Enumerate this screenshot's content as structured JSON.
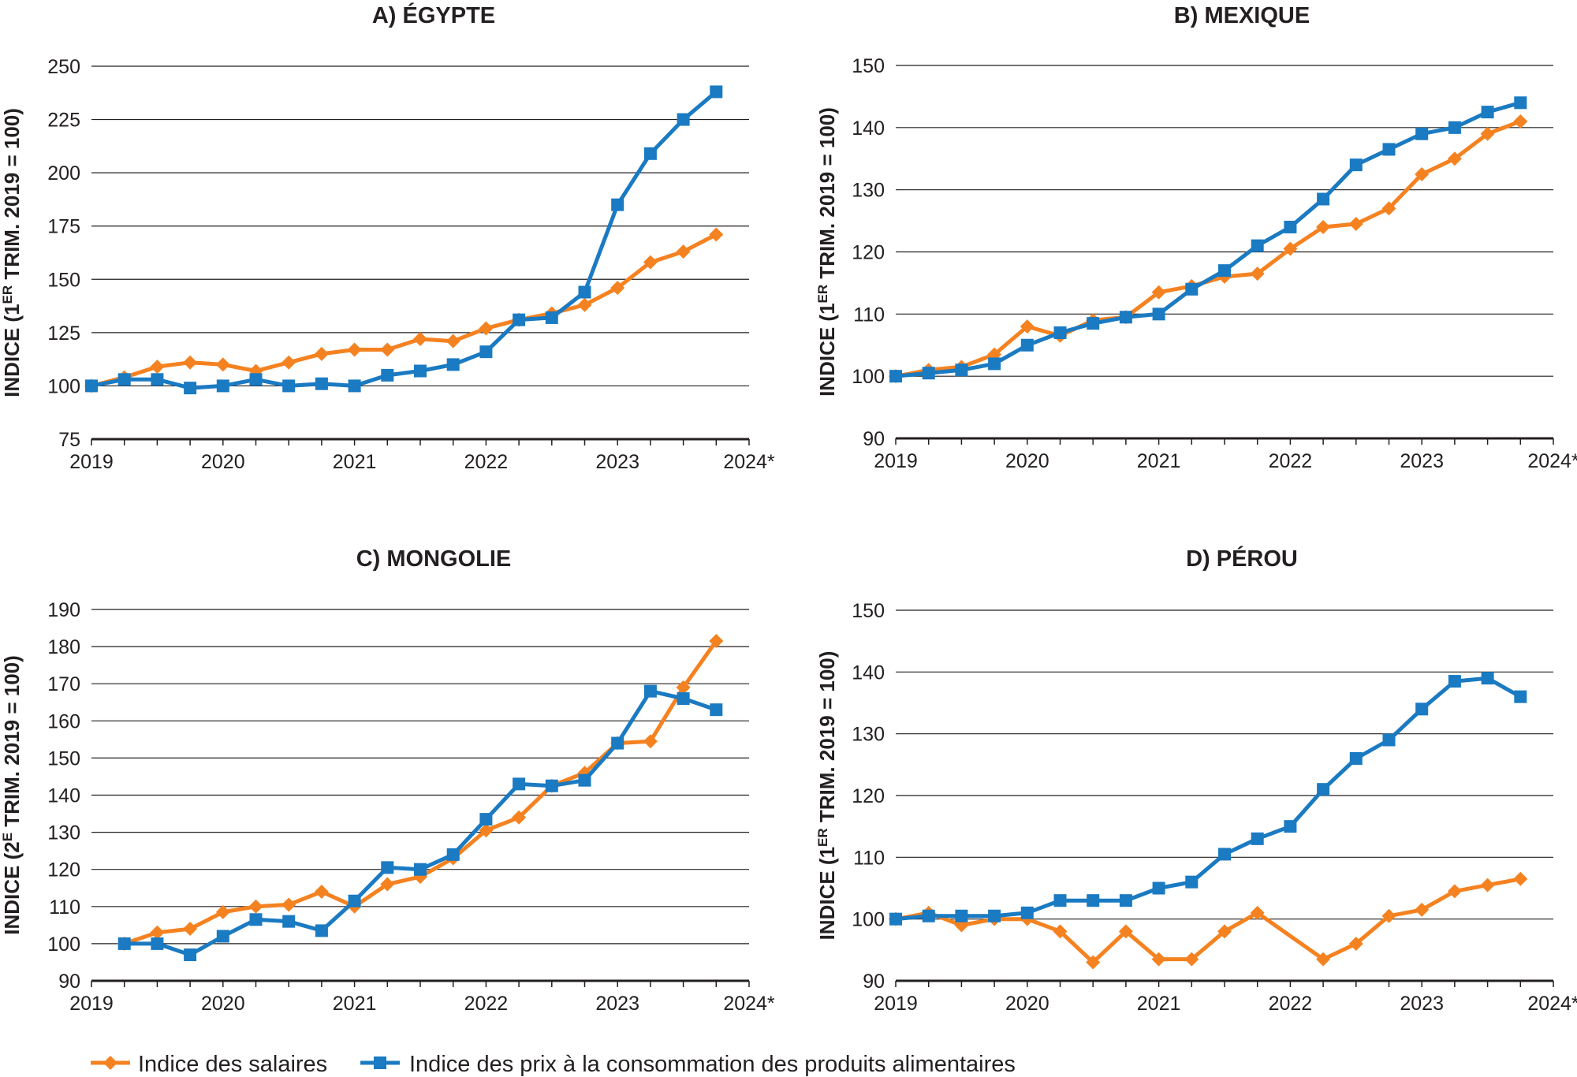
{
  "colors": {
    "wage": "#f58220",
    "cpi": "#1a7ac2",
    "grid": "#231f20"
  },
  "legend": {
    "wage_label": "Indice des salaires",
    "cpi_label": "Indice des prix à la consommation des produits alimentaires"
  },
  "chart_data": [
    {
      "type": "line",
      "title": "A) ÉGYPTE",
      "ylabel": "INDICE (1ER TRIM. 2019 = 100)",
      "xlabel": "",
      "x_ticks": [
        "2019",
        "2020",
        "2021",
        "2022",
        "2023",
        "2024*"
      ],
      "xlim": [
        2019,
        2024
      ],
      "ylim": [
        75,
        250
      ],
      "y_ticks": [
        75,
        100,
        125,
        150,
        175,
        200,
        225,
        250
      ],
      "grid": true,
      "series": [
        {
          "name": "Indice des salaires",
          "color": "#f58220",
          "marker": "diamond",
          "x": [
            2019.0,
            2019.25,
            2019.5,
            2019.75,
            2020.0,
            2020.25,
            2020.5,
            2020.75,
            2021.0,
            2021.25,
            2021.5,
            2021.75,
            2022.0,
            2022.25,
            2022.5,
            2022.75,
            2023.0,
            2023.25,
            2023.5,
            2023.75
          ],
          "y": [
            100,
            104,
            109,
            111,
            110,
            107,
            111,
            115,
            117,
            117,
            122,
            121,
            127,
            131,
            134,
            138,
            146,
            158,
            163,
            171
          ]
        },
        {
          "name": "Indice des prix à la consommation des produits alimentaires",
          "color": "#1a7ac2",
          "marker": "square",
          "x": [
            2019.0,
            2019.25,
            2019.5,
            2019.75,
            2020.0,
            2020.25,
            2020.5,
            2020.75,
            2021.0,
            2021.25,
            2021.5,
            2021.75,
            2022.0,
            2022.25,
            2022.5,
            2022.75,
            2023.0,
            2023.25,
            2023.5,
            2023.75
          ],
          "y": [
            100,
            103,
            103,
            99,
            100,
            103,
            100,
            101,
            100,
            105,
            107,
            110,
            116,
            131,
            132,
            144,
            185,
            209,
            225,
            238
          ]
        }
      ]
    },
    {
      "type": "line",
      "title": "B) MEXIQUE",
      "ylabel": "INDICE (1ER TRIM. 2019 = 100)",
      "xlabel": "",
      "x_ticks": [
        "2019",
        "2020",
        "2021",
        "2022",
        "2023",
        "2024*"
      ],
      "xlim": [
        2019,
        2024
      ],
      "ylim": [
        90,
        150
      ],
      "y_ticks": [
        90,
        100,
        110,
        120,
        130,
        140,
        150
      ],
      "grid": true,
      "series": [
        {
          "name": "Indice des salaires",
          "color": "#f58220",
          "marker": "diamond",
          "x": [
            2019.0,
            2019.25,
            2019.5,
            2019.75,
            2020.0,
            2020.25,
            2020.5,
            2020.75,
            2021.0,
            2021.25,
            2021.5,
            2021.75,
            2022.0,
            2022.25,
            2022.5,
            2022.75,
            2023.0,
            2023.25,
            2023.5,
            2023.75
          ],
          "y": [
            100,
            101,
            101.5,
            103.5,
            108,
            106.5,
            109,
            109.5,
            113.5,
            114.5,
            116,
            116.5,
            120.5,
            124,
            124.5,
            127,
            132.5,
            135,
            139,
            141
          ]
        },
        {
          "name": "Indice des prix à la consommation des produits alimentaires",
          "color": "#1a7ac2",
          "marker": "square",
          "x": [
            2019.0,
            2019.25,
            2019.5,
            2019.75,
            2020.0,
            2020.25,
            2020.5,
            2020.75,
            2021.0,
            2021.25,
            2021.5,
            2021.75,
            2022.0,
            2022.25,
            2022.5,
            2022.75,
            2023.0,
            2023.25,
            2023.5,
            2023.75
          ],
          "y": [
            100,
            100.5,
            101,
            102,
            105,
            107,
            108.5,
            109.5,
            110,
            114,
            117,
            121,
            124,
            128.5,
            134,
            136.5,
            139,
            140,
            142.5,
            144
          ]
        }
      ]
    },
    {
      "type": "line",
      "title": "C) MONGOLIE",
      "ylabel": "INDICE (2E TRIM. 2019 = 100)",
      "xlabel": "",
      "x_ticks": [
        "2019",
        "2020",
        "2021",
        "2022",
        "2023",
        "2024*"
      ],
      "xlim": [
        2019,
        2024
      ],
      "ylim": [
        90,
        190
      ],
      "y_ticks": [
        90,
        100,
        110,
        120,
        130,
        140,
        150,
        160,
        170,
        180,
        190
      ],
      "grid": true,
      "series": [
        {
          "name": "Indice des salaires",
          "color": "#f58220",
          "marker": "diamond",
          "x": [
            2019.25,
            2019.5,
            2019.75,
            2020.0,
            2020.25,
            2020.5,
            2020.75,
            2021.0,
            2021.25,
            2021.5,
            2021.75,
            2022.0,
            2022.25,
            2022.5,
            2022.75,
            2023.0,
            2023.25,
            2023.5,
            2023.75
          ],
          "y": [
            100,
            103,
            104,
            108.5,
            110,
            110.5,
            114,
            110,
            116,
            118,
            123,
            130.5,
            134,
            142.5,
            146,
            154,
            154.5,
            169,
            181.5
          ]
        },
        {
          "name": "Indice des prix à la consommation des produits alimentaires",
          "color": "#1a7ac2",
          "marker": "square",
          "x": [
            2019.25,
            2019.5,
            2019.75,
            2020.0,
            2020.25,
            2020.5,
            2020.75,
            2021.0,
            2021.25,
            2021.5,
            2021.75,
            2022.0,
            2022.25,
            2022.5,
            2022.75,
            2023.0,
            2023.25,
            2023.5,
            2023.75
          ],
          "y": [
            100,
            100,
            97,
            102,
            106.5,
            106,
            103.5,
            111.5,
            120.5,
            120,
            124,
            133.5,
            143,
            142.5,
            144,
            154,
            168,
            166,
            163
          ]
        }
      ]
    },
    {
      "type": "line",
      "title": "D) PÉROU",
      "ylabel": "INDICE (1ER TRIM. 2019 = 100)",
      "xlabel": "",
      "x_ticks": [
        "2019",
        "2020",
        "2021",
        "2022",
        "2023",
        "2024*"
      ],
      "xlim": [
        2019,
        2024
      ],
      "ylim": [
        90,
        150
      ],
      "y_ticks": [
        90,
        100,
        110,
        120,
        130,
        140,
        150
      ],
      "grid": true,
      "series": [
        {
          "name": "Indice des salaires",
          "color": "#f58220",
          "marker": "diamond",
          "x": [
            2019.0,
            2019.25,
            2019.5,
            2019.75,
            2020.0,
            2020.25,
            2020.5,
            2020.75,
            2021.0,
            2021.25,
            2021.5,
            2021.75,
            2022.25,
            2022.5,
            2022.75,
            2023.0,
            2023.25,
            2023.5,
            2023.75
          ],
          "y": [
            100,
            101,
            99,
            100,
            100,
            98,
            93,
            98,
            93.5,
            93.5,
            98,
            101,
            93.5,
            96,
            100.5,
            101.5,
            104.5,
            105.5,
            106.5
          ]
        },
        {
          "name": "Indice des prix à la consommation des produits alimentaires",
          "color": "#1a7ac2",
          "marker": "square",
          "x": [
            2019.0,
            2019.25,
            2019.5,
            2019.75,
            2020.0,
            2020.25,
            2020.5,
            2020.75,
            2021.0,
            2021.25,
            2021.5,
            2021.75,
            2022.0,
            2022.25,
            2022.5,
            2022.75,
            2023.0,
            2023.25,
            2023.5,
            2023.75
          ],
          "y": [
            100,
            100.5,
            100.5,
            100.5,
            101,
            103,
            103,
            103,
            105,
            106,
            110.5,
            113,
            115,
            121,
            126,
            129,
            134,
            138.5,
            139,
            136
          ]
        }
      ]
    }
  ]
}
